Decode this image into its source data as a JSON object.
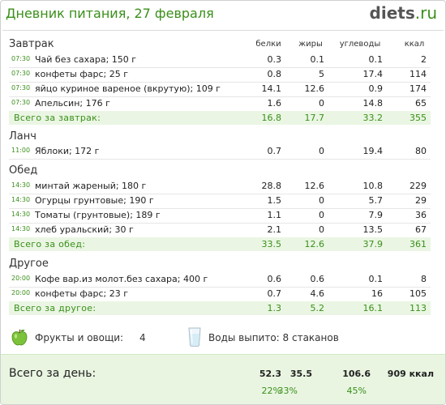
{
  "header": {
    "title": "Дневник питания, 27 февраля",
    "logo_main": "diets",
    "logo_tld": ".ru"
  },
  "columns": {
    "protein": "белки",
    "fat": "жиры",
    "carbs": "углеводы",
    "kcal": "ккал"
  },
  "meals": [
    {
      "name": "Завтрак",
      "items": [
        {
          "time": "07:30",
          "food": "Чай без сахара; 150 г",
          "protein": "0.3",
          "fat": "0.1",
          "carbs": "0.1",
          "kcal": "2"
        },
        {
          "time": "07:30",
          "food": "конфеты фарс; 25 г",
          "protein": "0.8",
          "fat": "5",
          "carbs": "17.4",
          "kcal": "114"
        },
        {
          "time": "07:30",
          "food": "яйцо куриное вареное (вкрутую); 109 г",
          "protein": "14.1",
          "fat": "12.6",
          "carbs": "0.9",
          "kcal": "174"
        },
        {
          "time": "07:30",
          "food": "Апельсин; 176 г",
          "protein": "1.6",
          "fat": "0",
          "carbs": "14.8",
          "kcal": "65"
        }
      ],
      "total": {
        "label": "Всего за завтрак:",
        "protein": "16.8",
        "fat": "17.7",
        "carbs": "33.2",
        "kcal": "355"
      }
    },
    {
      "name": "Ланч",
      "items": [
        {
          "time": "11:00",
          "food": "Яблоки; 172 г",
          "protein": "0.7",
          "fat": "0",
          "carbs": "19.4",
          "kcal": "80"
        }
      ]
    },
    {
      "name": "Обед",
      "items": [
        {
          "time": "14:30",
          "food": "минтай жареный; 180 г",
          "protein": "28.8",
          "fat": "12.6",
          "carbs": "10.8",
          "kcal": "229"
        },
        {
          "time": "14:30",
          "food": "Огурцы грунтовые; 190 г",
          "protein": "1.5",
          "fat": "0",
          "carbs": "5.7",
          "kcal": "29"
        },
        {
          "time": "14:30",
          "food": "Томаты (грунтовые); 189 г",
          "protein": "1.1",
          "fat": "0",
          "carbs": "7.9",
          "kcal": "36"
        },
        {
          "time": "14:30",
          "food": "хлеб уральский; 30 г",
          "protein": "2.1",
          "fat": "0",
          "carbs": "13.5",
          "kcal": "67"
        }
      ],
      "total": {
        "label": "Всего за обед:",
        "protein": "33.5",
        "fat": "12.6",
        "carbs": "37.9",
        "kcal": "361"
      }
    },
    {
      "name": "Другое",
      "items": [
        {
          "time": "20:00",
          "food": "Кофе вар.из молот.без сахара; 400 г",
          "protein": "0.6",
          "fat": "0.6",
          "carbs": "0.1",
          "kcal": "8"
        },
        {
          "time": "20:00",
          "food": "конфеты фарс; 23 г",
          "protein": "0.7",
          "fat": "4.6",
          "carbs": "16",
          "kcal": "105"
        }
      ],
      "total": {
        "label": "Всего за другое:",
        "protein": "1.3",
        "fat": "5.2",
        "carbs": "16.1",
        "kcal": "113"
      }
    }
  ],
  "extras": {
    "fruits_label": "Фрукты и овощи:",
    "fruits_value": "4",
    "water_label": "Воды выпито: 8 стаканов",
    "fruit_icon": "green-apple-icon",
    "water_icon": "water-glass-icon"
  },
  "day_total": {
    "label": "Всего за день:",
    "protein": "52.3",
    "fat": "35.5",
    "carbs": "106.6",
    "kcal": "909 ккал",
    "protein_pct": "22%",
    "fat_pct": "33%",
    "carbs_pct": "45%"
  },
  "colors": {
    "accent_green": "#3a8f1a",
    "total_row_bg": "#eaf6e3",
    "day_box_bg": "#e9f5e1"
  }
}
